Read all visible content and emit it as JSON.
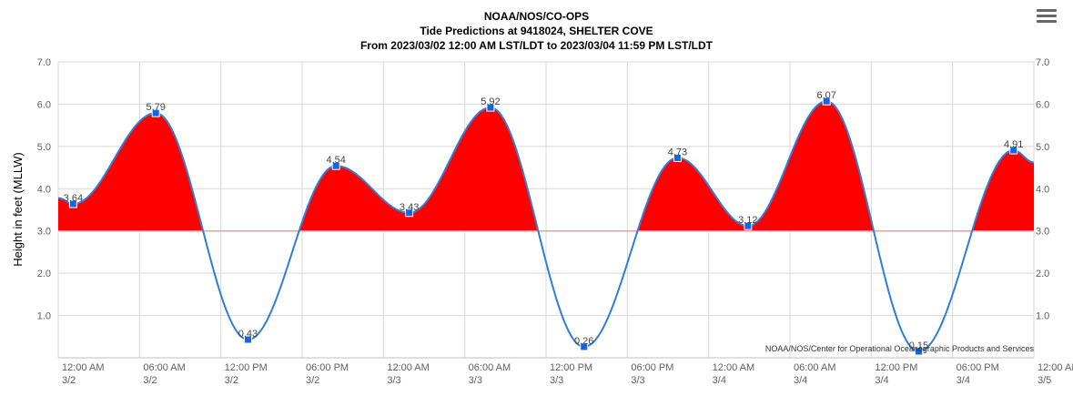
{
  "header": {
    "title": "NOAA/NOS/CO-OPS",
    "subtitle": "Tide Predictions at 9418024, SHELTER COVE",
    "range": "From 2023/03/02 12:00 AM LST/LDT to 2023/03/04 11:59 PM LST/LDT",
    "menu_icon": "hamburger-menu-icon"
  },
  "chart_data": {
    "type": "area",
    "title": "NOAA/NOS/CO-OPS",
    "subtitle": "Tide Predictions at 9418024, SHELTER COVE",
    "ylabel": "Height in feet (MLLW)",
    "xlabel": "",
    "ylim": [
      0,
      7
    ],
    "yticks": [
      "1.0",
      "2.0",
      "3.0",
      "4.0",
      "5.0",
      "6.0",
      "7.0"
    ],
    "threshold": 3.0,
    "x_range_hours": [
      0,
      72
    ],
    "xticks": [
      {
        "hour": 0,
        "time": "12:00 AM",
        "date": "3/2"
      },
      {
        "hour": 6,
        "time": "06:00 AM",
        "date": "3/2"
      },
      {
        "hour": 12,
        "time": "12:00 PM",
        "date": "3/2"
      },
      {
        "hour": 18,
        "time": "06:00 PM",
        "date": "3/2"
      },
      {
        "hour": 24,
        "time": "12:00 AM",
        "date": "3/3"
      },
      {
        "hour": 30,
        "time": "06:00 AM",
        "date": "3/3"
      },
      {
        "hour": 36,
        "time": "12:00 PM",
        "date": "3/3"
      },
      {
        "hour": 42,
        "time": "06:00 PM",
        "date": "3/3"
      },
      {
        "hour": 48,
        "time": "12:00 AM",
        "date": "3/4"
      },
      {
        "hour": 54,
        "time": "06:00 AM",
        "date": "3/4"
      },
      {
        "hour": 60,
        "time": "12:00 PM",
        "date": "3/4"
      },
      {
        "hour": 66,
        "time": "06:00 PM",
        "date": "3/4"
      },
      {
        "hour": 72,
        "time": "12:00 AM",
        "date": "3/5"
      }
    ],
    "start_value": 3.78,
    "end_value": 4.62,
    "points": [
      {
        "hour": 1.1,
        "value": 3.64,
        "label": "3.64"
      },
      {
        "hour": 7.2,
        "value": 5.79,
        "label": "5.79"
      },
      {
        "hour": 14.0,
        "value": 0.43,
        "label": "0.43"
      },
      {
        "hour": 20.5,
        "value": 4.54,
        "label": "4.54"
      },
      {
        "hour": 25.9,
        "value": 3.43,
        "label": "3.43"
      },
      {
        "hour": 31.9,
        "value": 5.92,
        "label": "5.92"
      },
      {
        "hour": 38.8,
        "value": 0.26,
        "label": "0.26"
      },
      {
        "hour": 45.7,
        "value": 4.73,
        "label": "4.73"
      },
      {
        "hour": 50.9,
        "value": 3.12,
        "label": "3.12"
      },
      {
        "hour": 56.7,
        "value": 6.07,
        "label": "6.07"
      },
      {
        "hour": 63.5,
        "value": 0.15,
        "label": "0.15"
      },
      {
        "hour": 70.5,
        "value": 4.91,
        "label": "4.91"
      }
    ],
    "colors": {
      "line": "#2f7ed8",
      "fill_above": "#ff0000",
      "threshold": "#e8a0a0",
      "marker": "#1565e0",
      "grid": "#d8d8d8"
    },
    "grid": true,
    "credit": "NOAA/NOS/Center for Operational Oceanographic Products and Services"
  }
}
